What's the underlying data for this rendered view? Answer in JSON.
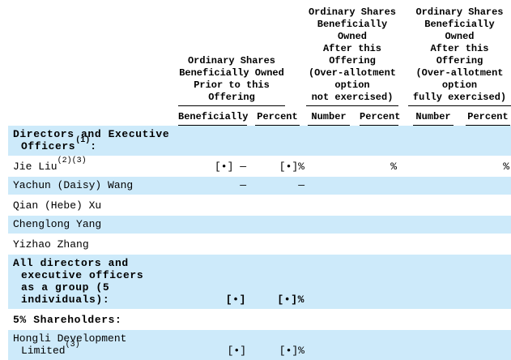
{
  "page": {
    "background_color": "#ffffff",
    "shade_color": "#cdeafa",
    "text_color": "#000000"
  },
  "table": {
    "groups": [
      {
        "title_lines": [
          "Ordinary Shares",
          "Beneficially Owned",
          "Prior to this",
          "Offering"
        ],
        "columns": [
          "Beneficially",
          "Percent"
        ]
      },
      {
        "title_lines": [
          "Ordinary Shares",
          "Beneficially",
          "Owned",
          "After this",
          "Offering",
          "(Over-allotment",
          "option",
          "not exercised)"
        ],
        "columns": [
          "Number",
          "Percent"
        ]
      },
      {
        "title_lines": [
          "Ordinary Shares",
          "Beneficially",
          "Owned",
          "After this",
          "Offering",
          "(Over-allotment",
          "option",
          "fully exercised)"
        ],
        "columns": [
          "Number",
          "Percent"
        ]
      }
    ],
    "rows": [
      {
        "bold": true,
        "shaded": true,
        "label_lines": [
          [
            {
              "text": "Directors and Executive"
            }
          ],
          [
            {
              "text": "Officers"
            },
            {
              "sup": "(1)"
            },
            {
              "text": ":"
            }
          ]
        ],
        "cells": [
          "",
          "",
          "",
          "",
          "",
          ""
        ]
      },
      {
        "bold": false,
        "shaded": false,
        "label_lines": [
          [
            {
              "text": "Jie Liu"
            },
            {
              "sup": "(2)(3)"
            }
          ]
        ],
        "cells": [
          "[•] —",
          "[•]%",
          "",
          "%",
          "",
          "%"
        ]
      },
      {
        "bold": false,
        "shaded": true,
        "label_lines": [
          [
            {
              "text": "Yachun (Daisy) Wang"
            }
          ]
        ],
        "cells": [
          "—",
          "—",
          "",
          "",
          "",
          ""
        ]
      },
      {
        "bold": false,
        "shaded": false,
        "label_lines": [
          [
            {
              "text": "Qian (Hebe) Xu"
            }
          ]
        ],
        "cells": [
          "",
          "",
          "",
          "",
          "",
          ""
        ]
      },
      {
        "bold": false,
        "shaded": true,
        "label_lines": [
          [
            {
              "text": "Chenglong Yang"
            }
          ]
        ],
        "cells": [
          "",
          "",
          "",
          "",
          "",
          ""
        ]
      },
      {
        "bold": false,
        "shaded": false,
        "label_lines": [
          [
            {
              "text": "Yizhao Zhang"
            }
          ]
        ],
        "cells": [
          "",
          "",
          "",
          "",
          "",
          ""
        ]
      },
      {
        "bold": true,
        "shaded": true,
        "label_lines": [
          [
            {
              "text": "All directors and"
            }
          ],
          [
            {
              "text": "executive officers"
            }
          ],
          [
            {
              "text": "as a group (5"
            }
          ],
          [
            {
              "text": "individuals):"
            }
          ]
        ],
        "cells": [
          "[•]",
          "[•]%",
          "",
          "",
          "",
          ""
        ]
      },
      {
        "bold": true,
        "shaded": false,
        "label_lines": [
          [
            {
              "text": "5% Shareholders:"
            }
          ]
        ],
        "cells": [
          "",
          "",
          "",
          "",
          "",
          ""
        ]
      },
      {
        "bold": false,
        "shaded": true,
        "label_lines": [
          [
            {
              "text": "Hongli Development"
            }
          ],
          [
            {
              "text": "Limited"
            },
            {
              "sup": "(3)"
            }
          ]
        ],
        "cells": [
          "[•]",
          "[•]%",
          "",
          "",
          "",
          ""
        ]
      }
    ]
  }
}
